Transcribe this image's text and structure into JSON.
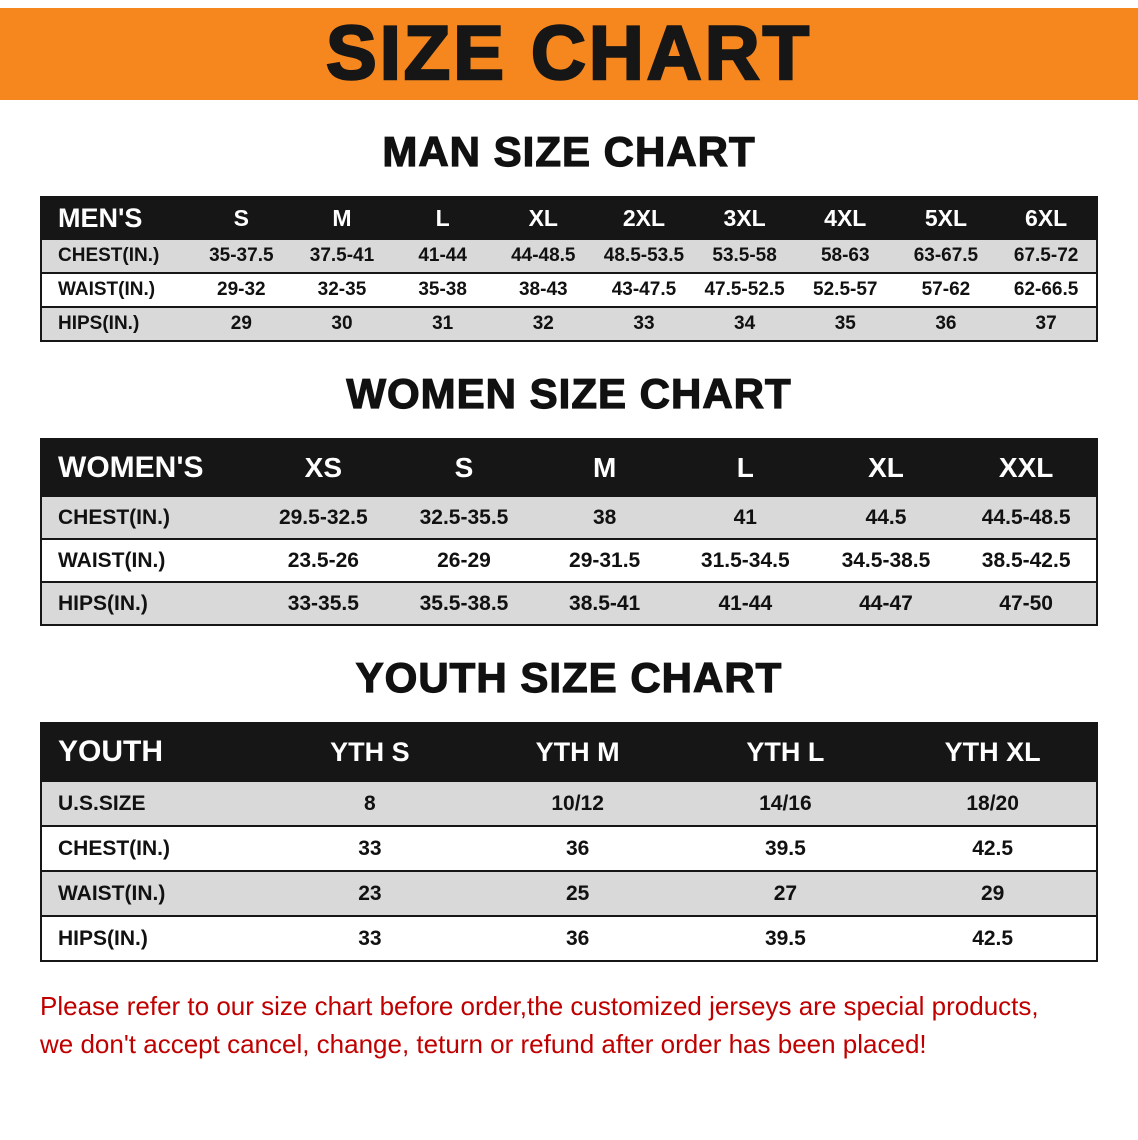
{
  "banner": {
    "title": "SIZE CHART"
  },
  "colors": {
    "banner_orange": "#F6871F",
    "header_black": "#161616",
    "row_gray": "#D9D9D9",
    "row_white": "#FFFFFF",
    "note_red": "#C00000",
    "text_black": "#111111"
  },
  "sections": [
    {
      "heading": "MAN SIZE CHART",
      "table": {
        "header": [
          "MEN'S",
          "S",
          "M",
          "L",
          "XL",
          "2XL",
          "3XL",
          "4XL",
          "5XL",
          "6XL"
        ],
        "rows": [
          {
            "label": "CHEST(IN.)",
            "values": [
              "35-37.5",
              "37.5-41",
              "41-44",
              "44-48.5",
              "48.5-53.5",
              "53.5-58",
              "58-63",
              "63-67.5",
              "67.5-72"
            ]
          },
          {
            "label": "WAIST(IN.)",
            "values": [
              "29-32",
              "32-35",
              "35-38",
              "38-43",
              "43-47.5",
              "47.5-52.5",
              "52.5-57",
              "57-62",
              "62-66.5"
            ]
          },
          {
            "label": "HIPS(IN.)",
            "values": [
              "29",
              "30",
              "31",
              "32",
              "33",
              "34",
              "35",
              "36",
              "37"
            ]
          }
        ]
      }
    },
    {
      "heading": "WOMEN SIZE CHART",
      "table": {
        "header": [
          "WOMEN'S",
          "XS",
          "S",
          "M",
          "L",
          "XL",
          "XXL"
        ],
        "rows": [
          {
            "label": "CHEST(IN.)",
            "values": [
              "29.5-32.5",
              "32.5-35.5",
              "38",
              "41",
              "44.5",
              "44.5-48.5"
            ]
          },
          {
            "label": "WAIST(IN.)",
            "values": [
              "23.5-26",
              "26-29",
              "29-31.5",
              "31.5-34.5",
              "34.5-38.5",
              "38.5-42.5"
            ]
          },
          {
            "label": "HIPS(IN.)",
            "values": [
              "33-35.5",
              "35.5-38.5",
              "38.5-41",
              "41-44",
              "44-47",
              "47-50"
            ]
          }
        ]
      }
    },
    {
      "heading": "YOUTH SIZE CHART",
      "table": {
        "header": [
          "YOUTH",
          "YTH S",
          "YTH M",
          "YTH L",
          "YTH XL"
        ],
        "rows": [
          {
            "label": "U.S.SIZE",
            "values": [
              "8",
              "10/12",
              "14/16",
              "18/20"
            ]
          },
          {
            "label": "CHEST(IN.)",
            "values": [
              "33",
              "36",
              "39.5",
              "42.5"
            ]
          },
          {
            "label": "WAIST(IN.)",
            "values": [
              "23",
              "25",
              "27",
              "29"
            ]
          },
          {
            "label": "HIPS(IN.)",
            "values": [
              "33",
              "36",
              "39.5",
              "42.5"
            ]
          }
        ]
      }
    }
  ],
  "footer": {
    "line1": "Please refer to our size chart before order,the customized jerseys are special products,",
    "line2": "we don't accept cancel, change, teturn or refund after order has been placed!"
  }
}
